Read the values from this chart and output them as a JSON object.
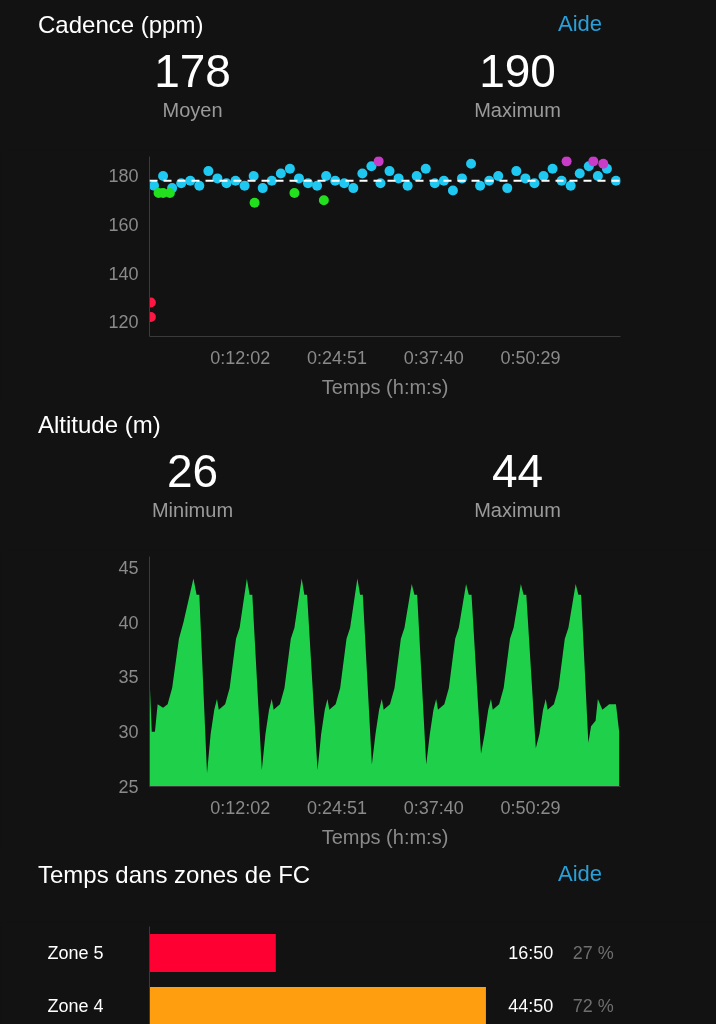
{
  "chart_data": [
    {
      "type": "scatter",
      "title": "Cadence (ppm)",
      "xlabel": "Temps (h:m:s)",
      "annotations": [
        "178",
        "Moyen",
        "190",
        "Maximum",
        "Aide"
      ],
      "xlim": [
        0,
        1.04
      ],
      "ylim": [
        114,
        188
      ],
      "yticks": [
        120,
        140,
        160,
        180
      ],
      "xticks": [
        {
          "value": 0.2006,
          "label": "0:12:02"
        },
        {
          "value": 0.4142,
          "label": "0:24:51"
        },
        {
          "value": 0.6278,
          "label": "0:37:40"
        },
        {
          "value": 0.8414,
          "label": "0:50:29"
        }
      ],
      "marker": "circle",
      "ref_lines": [
        {
          "axis": "y",
          "value": 178,
          "label": null,
          "color": "#ffffff",
          "line_style": "dashed"
        }
      ],
      "series": [
        {
          "color": "#1ec8f0",
          "x": [
            0.01,
            0.03,
            0.05,
            0.07,
            0.09,
            0.11,
            0.13,
            0.15,
            0.17,
            0.19,
            0.21,
            0.23,
            0.25,
            0.27,
            0.29,
            0.31,
            0.33,
            0.35,
            0.37,
            0.39,
            0.41,
            0.43,
            0.45,
            0.47,
            0.49,
            0.51,
            0.53,
            0.55,
            0.57,
            0.59,
            0.61,
            0.63,
            0.65,
            0.67,
            0.69,
            0.71,
            0.73,
            0.75,
            0.77,
            0.79,
            0.81,
            0.83,
            0.85,
            0.87,
            0.89,
            0.91,
            0.93,
            0.95,
            0.97,
            0.99,
            1.01,
            1.03
          ],
          "values": [
            176,
            180,
            175,
            177,
            178,
            176,
            182,
            179,
            177,
            178,
            176,
            180,
            175,
            178,
            181,
            183,
            179,
            177,
            176,
            180,
            178,
            177,
            175,
            181,
            184,
            177,
            182,
            179,
            176,
            180,
            183,
            177,
            178,
            174,
            179,
            185,
            176,
            178,
            180,
            175,
            182,
            179,
            177,
            180,
            183,
            178,
            176,
            181,
            184,
            180,
            183,
            178
          ]
        },
        {
          "color": "#22e01e",
          "x": [
            0.02,
            0.03,
            0.045,
            0.232,
            0.32,
            0.385
          ],
          "values": [
            173,
            173,
            173,
            169,
            173,
            170
          ]
        },
        {
          "color": "#c83cc8",
          "x": [
            0.506,
            0.921,
            0.98,
            1.002
          ],
          "values": [
            186,
            186,
            186,
            185
          ]
        },
        {
          "color": "#ff1744",
          "x": [
            0.003,
            0.003
          ],
          "values": [
            128,
            122
          ]
        }
      ]
    },
    {
      "type": "area",
      "title": "Altitude (m)",
      "xlabel": "Temps (h:m:s)",
      "annotations": [
        "26",
        "Minimum",
        "44",
        "Maximum"
      ],
      "xlim": [
        0,
        1.04
      ],
      "ylim": [
        25,
        46
      ],
      "yticks": [
        25,
        30,
        35,
        40,
        45
      ],
      "xticks": [
        {
          "value": 0.2006,
          "label": "0:12:02"
        },
        {
          "value": 0.4142,
          "label": "0:24:51"
        },
        {
          "value": 0.6278,
          "label": "0:37:40"
        },
        {
          "value": 0.8414,
          "label": "0:50:29"
        }
      ],
      "series": [
        {
          "color": "#1fd14a",
          "x": [
            0,
            0.005,
            0.012,
            0.018,
            0.03,
            0.04,
            0.05,
            0.065,
            0.075,
            0.097,
            0.104,
            0.11,
            0.127,
            0.135,
            0.143,
            0.149,
            0.153,
            0.167,
            0.177,
            0.191,
            0.199,
            0.215,
            0.221,
            0.227,
            0.248,
            0.256,
            0.264,
            0.27,
            0.274,
            0.288,
            0.298,
            0.312,
            0.32,
            0.336,
            0.342,
            0.348,
            0.371,
            0.379,
            0.387,
            0.393,
            0.397,
            0.411,
            0.421,
            0.435,
            0.443,
            0.459,
            0.465,
            0.471,
            0.491,
            0.499,
            0.507,
            0.513,
            0.517,
            0.531,
            0.541,
            0.555,
            0.563,
            0.579,
            0.585,
            0.591,
            0.611,
            0.619,
            0.627,
            0.633,
            0.637,
            0.651,
            0.661,
            0.675,
            0.683,
            0.699,
            0.705,
            0.711,
            0.732,
            0.74,
            0.748,
            0.754,
            0.758,
            0.772,
            0.782,
            0.796,
            0.804,
            0.82,
            0.826,
            0.832,
            0.853,
            0.861,
            0.869,
            0.875,
            0.879,
            0.893,
            0.903,
            0.917,
            0.925,
            0.941,
            0.947,
            0.953,
            0.969,
            0.975,
            0.985,
            0.99,
            1.0,
            1.015,
            1.03,
            1.037
          ],
          "values": [
            35,
            30,
            30,
            32.5,
            32.2,
            32.5,
            34,
            38.5,
            40,
            44,
            42.5,
            42.5,
            26.2,
            29.8,
            32,
            33,
            32,
            32.5,
            34,
            38.5,
            39.5,
            44,
            42.5,
            42.5,
            26.5,
            29.8,
            32,
            33,
            32,
            32.5,
            34,
            38.5,
            39.5,
            44,
            42.5,
            42.5,
            26.5,
            29.8,
            32,
            33,
            32,
            32.5,
            34,
            38.5,
            39.5,
            44,
            42.5,
            42.5,
            27,
            29.8,
            32,
            33,
            32,
            32.5,
            34,
            38.5,
            39.5,
            43.5,
            42.5,
            42.5,
            27,
            29.8,
            32,
            33,
            32,
            32.5,
            34,
            38.5,
            39.5,
            43.5,
            42.5,
            42.5,
            28,
            29.8,
            32,
            33,
            32,
            32.5,
            34,
            38.5,
            39.5,
            43.5,
            42.5,
            42.5,
            28.5,
            29.8,
            32,
            33,
            32,
            32.5,
            34,
            38.5,
            39.5,
            43.5,
            42.5,
            42.5,
            29,
            30.5,
            31,
            33,
            32,
            32.5,
            32.5,
            30
          ]
        }
      ]
    },
    {
      "type": "bar",
      "orientation": "horizontal",
      "title": "Temps dans zones de FC",
      "categories": [
        "Zone 5",
        "Zone 4"
      ],
      "values": [
        16.83,
        44.83
      ],
      "colors": [
        "#ff0033",
        "#ff9f0f"
      ],
      "value_labels": [
        "16:50",
        "44:50"
      ],
      "tick_labels": "y",
      "annotations": [
        "Aide",
        "27 %",
        "72 %"
      ]
    }
  ]
}
